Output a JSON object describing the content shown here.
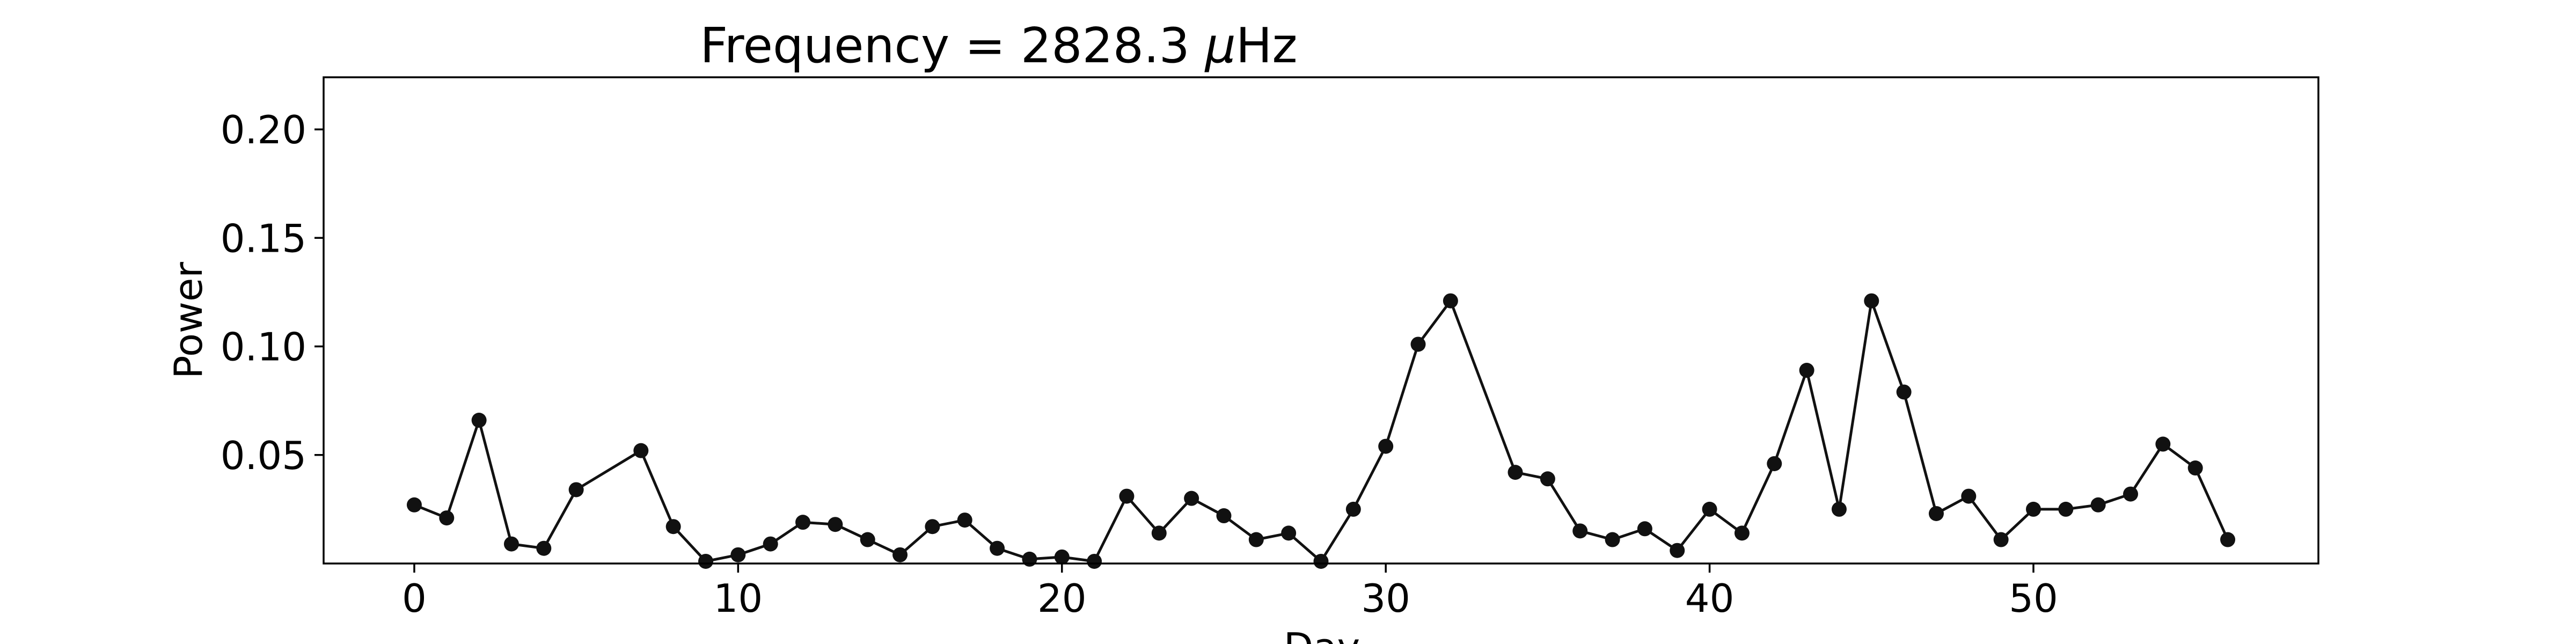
{
  "chart_data": {
    "type": "line",
    "title": "Frequency = 2828.3 μHz",
    "title_prefix": "Frequency = 2828.3 ",
    "title_unit_italic": "μ",
    "title_unit_rest": "Hz",
    "xlabel": "Day",
    "ylabel": "Power",
    "xlim": [
      -2.8,
      58.8
    ],
    "ylim": [
      0.0,
      0.224
    ],
    "x_ticks": [
      0,
      10,
      20,
      30,
      40,
      50
    ],
    "x_tick_labels": [
      "0",
      "10",
      "20",
      "30",
      "40",
      "50"
    ],
    "y_ticks": [
      0.05,
      0.1,
      0.15,
      0.2
    ],
    "y_tick_labels": [
      "0.05",
      "0.10",
      "0.15",
      "0.20"
    ],
    "grid": false,
    "legend": "none",
    "series": [
      {
        "color": "#111111",
        "marker": "circle",
        "x": [
          0,
          1,
          2,
          3,
          4,
          5,
          7,
          8,
          9,
          10,
          11,
          12,
          13,
          14,
          15,
          16,
          17,
          18,
          19,
          20,
          21,
          22,
          23,
          24,
          25,
          26,
          27,
          28,
          29,
          30,
          31,
          32,
          34,
          35,
          36,
          37,
          38,
          39,
          40,
          41,
          42,
          43,
          44,
          45,
          46,
          47,
          48,
          49,
          50,
          51,
          52,
          53,
          54,
          55,
          56
        ],
        "y": [
          0.027,
          0.021,
          0.066,
          0.009,
          0.007,
          0.034,
          0.052,
          0.017,
          0.001,
          0.004,
          0.009,
          0.019,
          0.018,
          0.011,
          0.004,
          0.017,
          0.02,
          0.007,
          0.002,
          0.003,
          0.001,
          0.031,
          0.014,
          0.03,
          0.022,
          0.011,
          0.014,
          0.001,
          0.025,
          0.054,
          0.101,
          0.121,
          0.042,
          0.039,
          0.015,
          0.011,
          0.016,
          0.006,
          0.025,
          0.014,
          0.046,
          0.089,
          0.025,
          0.121,
          0.079,
          0.023,
          0.031,
          0.011,
          0.025,
          0.025,
          0.027,
          0.032,
          0.055,
          0.044,
          0.011
        ]
      }
    ]
  }
}
